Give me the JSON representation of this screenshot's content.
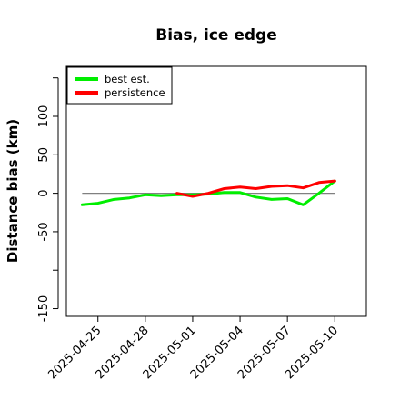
{
  "chart_data": {
    "type": "line",
    "title": "Bias, ice edge",
    "xlabel": "",
    "ylabel": "Distance bias (km)",
    "xlim": [
      "2025-04-23",
      "2025-05-12"
    ],
    "ylim": [
      -160,
      165
    ],
    "x_ticks": [
      "2025-04-25",
      "2025-04-28",
      "2025-05-01",
      "2025-05-04",
      "2025-05-07",
      "2025-05-10"
    ],
    "y_ticks": [
      -150,
      -100,
      -50,
      0,
      50,
      100,
      150
    ],
    "y_tick_labels": [
      "-150",
      "",
      "-50",
      "0",
      "50",
      "100",
      ""
    ],
    "reference_line": 0,
    "reference_color": "#808080",
    "grid": false,
    "legend": {
      "position": "top-left"
    },
    "series": [
      {
        "name": "best est.",
        "color": "#00ee00",
        "points": [
          [
            "2025-04-24",
            -15
          ],
          [
            "2025-04-25",
            -13
          ],
          [
            "2025-04-26",
            -8
          ],
          [
            "2025-04-27",
            -6
          ],
          [
            "2025-04-28",
            -2
          ],
          [
            "2025-04-29",
            -3
          ],
          [
            "2025-04-30",
            -2
          ],
          [
            "2025-05-01",
            -2
          ],
          [
            "2025-05-02",
            -1
          ],
          [
            "2025-05-03",
            1
          ],
          [
            "2025-05-04",
            1
          ],
          [
            "2025-05-05",
            -5
          ],
          [
            "2025-05-06",
            -8
          ],
          [
            "2025-05-07",
            -7
          ],
          [
            "2025-05-08",
            -15
          ],
          [
            "2025-05-09",
            0
          ],
          [
            "2025-05-10",
            16
          ]
        ]
      },
      {
        "name": "persistence",
        "color": "#ff0000",
        "points": [
          [
            "2025-04-30",
            0
          ],
          [
            "2025-05-01",
            -4
          ],
          [
            "2025-05-02",
            0
          ],
          [
            "2025-05-03",
            6
          ],
          [
            "2025-05-04",
            8
          ],
          [
            "2025-05-05",
            6
          ],
          [
            "2025-05-06",
            9
          ],
          [
            "2025-05-07",
            10
          ],
          [
            "2025-05-08",
            7
          ],
          [
            "2025-05-09",
            14
          ],
          [
            "2025-05-10",
            16
          ]
        ]
      }
    ]
  }
}
